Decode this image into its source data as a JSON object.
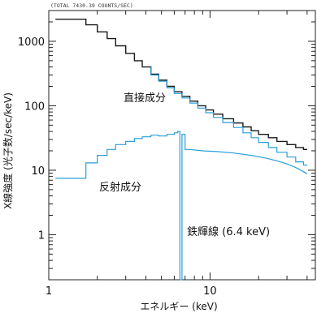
{
  "header": "(TOTAL    7430.39 COUNTS/SEC)",
  "chart_data": {
    "type": "line",
    "title": "",
    "xlabel": "エネルギー (keV)",
    "ylabel": "X線強度 (光子数/sec/keV)",
    "xscale": "log",
    "yscale": "log",
    "xlim": [
      1,
      45
    ],
    "ylim": [
      0.2,
      3000
    ],
    "grid": false,
    "x_ticks": [
      {
        "value": 1,
        "label": "1"
      },
      {
        "value": 10,
        "label": "10"
      }
    ],
    "y_ticks": [
      {
        "value": 1,
        "label": "1"
      },
      {
        "value": 10,
        "label": "10"
      },
      {
        "value": 100,
        "label": "100"
      },
      {
        "value": 1000,
        "label": "1000"
      }
    ],
    "colors": {
      "total": "#1a1a1a",
      "component": "#2a9ed8"
    },
    "series": [
      {
        "id": "total",
        "x": [
          1.1,
          1.7,
          1.7,
          2.0,
          2.0,
          2.3,
          2.3,
          2.6,
          2.6,
          3.0,
          3.0,
          3.4,
          3.4,
          3.8,
          3.8,
          4.3,
          4.3,
          4.8,
          4.8,
          5.4,
          5.4,
          6.0,
          6.0,
          6.7,
          6.7,
          7.5,
          7.5,
          8.4,
          8.4,
          9.4,
          9.4,
          10.5,
          10.5,
          12,
          12,
          14,
          14,
          16,
          16,
          18,
          18,
          20,
          20,
          23,
          23,
          26,
          26,
          30,
          30,
          34,
          34,
          38,
          38,
          40
        ],
        "y": [
          2200,
          2200,
          1800,
          1800,
          1400,
          1400,
          1100,
          1100,
          850,
          850,
          650,
          650,
          500,
          500,
          400,
          400,
          310,
          310,
          250,
          250,
          200,
          200,
          165,
          165,
          140,
          140,
          118,
          118,
          100,
          100,
          86,
          86,
          74,
          74,
          63,
          63,
          54,
          54,
          47,
          47,
          41,
          41,
          36,
          36,
          32,
          32,
          28,
          28,
          25,
          25,
          22.5,
          22.5,
          21,
          21
        ]
      },
      {
        "id": "direct",
        "label": "直接成分",
        "x": [
          4.3,
          4.3,
          4.8,
          4.8,
          5.4,
          5.4,
          6.0,
          6.0,
          6.7,
          6.7,
          7.5,
          7.5,
          8.4,
          8.4,
          9.4,
          9.4,
          10.5,
          10.5,
          12,
          12,
          14,
          14,
          16,
          16,
          18,
          18,
          20,
          20,
          23,
          23,
          26,
          26,
          30,
          30,
          34,
          34,
          38,
          38,
          40
        ],
        "y": [
          400,
          300,
          300,
          240,
          240,
          190,
          190,
          155,
          155,
          132,
          132,
          110,
          110,
          92,
          92,
          78,
          78,
          66,
          66,
          55,
          55,
          46,
          46,
          38,
          38,
          32,
          32,
          27,
          27,
          22.5,
          22.5,
          19,
          19,
          16,
          16,
          13.5,
          13.5,
          12,
          12
        ]
      },
      {
        "id": "reflected",
        "label": "反射成分",
        "x": [
          1.1,
          1.7,
          1.7,
          2.0,
          2.0,
          2.3,
          2.3,
          2.6,
          2.6,
          3.0,
          3.0,
          3.4,
          3.4,
          3.8,
          3.8,
          4.3,
          4.3,
          4.8,
          4.8,
          5.4,
          5.4,
          6.0,
          6.0,
          6.3,
          6.3,
          6.5,
          6.5,
          6.7,
          6.7,
          7.0,
          7.0,
          7.5,
          9,
          11,
          14,
          18,
          22,
          26,
          30,
          34,
          38,
          40
        ],
        "y": [
          7.5,
          7.5,
          13,
          13,
          17,
          17,
          21,
          21,
          25,
          25,
          28,
          28,
          31,
          31,
          33,
          33,
          35,
          35,
          34,
          34,
          36,
          36,
          38,
          38,
          40,
          40,
          0.2,
          0.2,
          36,
          36,
          21,
          21,
          20,
          19.5,
          18.5,
          17,
          15.5,
          14,
          12.5,
          11,
          9.5,
          8.8
        ]
      }
    ],
    "annotations": [
      {
        "text": "直接成分",
        "target": "direct"
      },
      {
        "text": "反射成分",
        "target": "reflected"
      },
      {
        "text": "鉄輝線 (6.4 keV)",
        "target": "reflected"
      }
    ]
  }
}
